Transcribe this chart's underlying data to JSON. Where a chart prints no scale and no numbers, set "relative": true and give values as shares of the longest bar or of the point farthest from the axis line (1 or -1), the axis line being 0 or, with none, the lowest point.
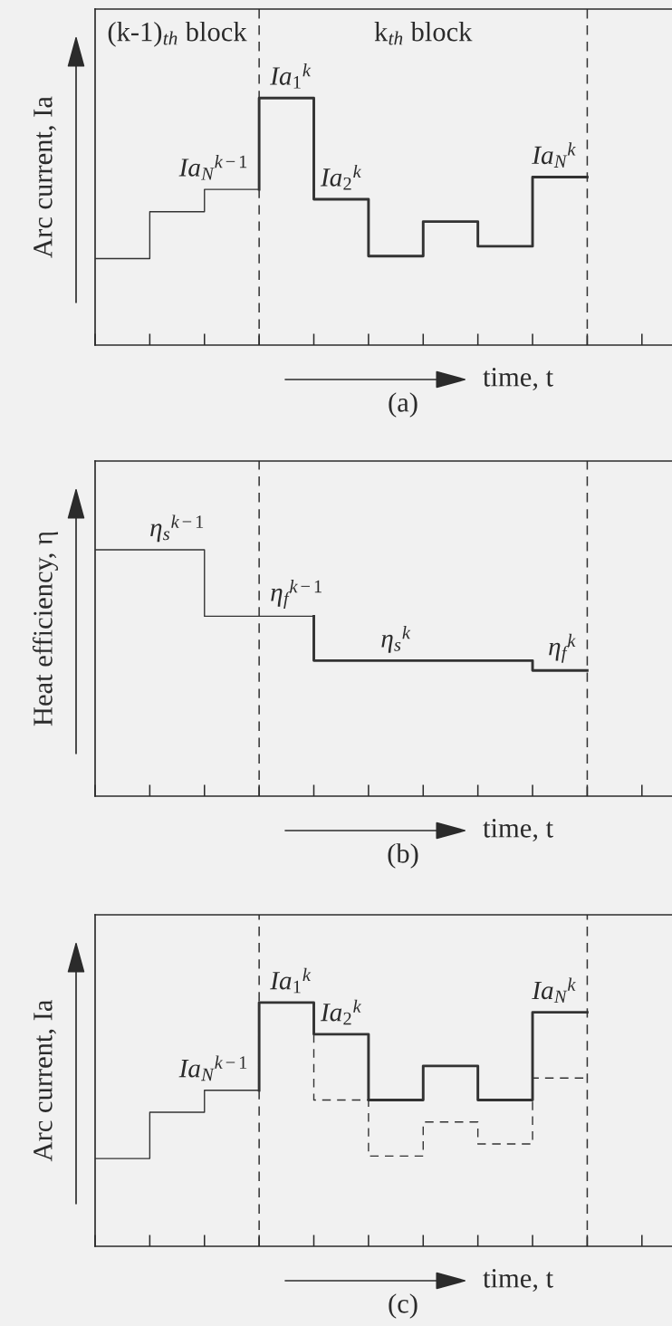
{
  "chart_data": [
    {
      "type": "step",
      "title": "(a)",
      "xlabel": "time, t",
      "ylabel": "Arc current, Ia",
      "relative": true,
      "categories": [
        null,
        null,
        null,
        null,
        null,
        null,
        null,
        null,
        null,
        null,
        null
      ],
      "series": [
        {
          "color": "#333333",
          "line_style": "solid",
          "values": [
            0.35,
            0.35,
            0.54,
            0.63,
            null,
            null,
            null,
            null,
            null,
            null,
            null
          ]
        },
        {
          "color": "#333333",
          "line_style": "solid",
          "values": [
            null,
            null,
            null,
            0.63,
            1,
            0.59,
            0.36,
            0.5,
            0.4,
            0.68,
            null
          ]
        }
      ],
      "annotations": [
        "(k-1)$_{th}$ block",
        "k$_{th}$ block",
        {
          "text": "Ia$_{N}$$^{k−1}$",
          "y": 0.63
        },
        {
          "text": "Ia$_{1}$$^{k}$",
          "y": 1
        },
        {
          "text": "Ia$_{2}$$^{k}$",
          "y": 0.59
        },
        {
          "text": "Ia$_{N}$$^{k}$",
          "y": 0.68
        }
      ]
    },
    {
      "type": "step",
      "title": "(b)",
      "xlabel": "time, t",
      "ylabel": "Heat efficiency, η",
      "relative": true,
      "categories": [
        null,
        null,
        null,
        null,
        null,
        null,
        null,
        null,
        null,
        null,
        null
      ],
      "series": [
        {
          "color": "#333333",
          "line_style": "solid",
          "values": [
            1,
            1,
            1,
            0.73,
            0.73,
            null,
            null,
            null,
            null,
            null,
            null
          ]
        },
        {
          "color": "#333333",
          "line_style": "solid",
          "values": [
            null,
            null,
            null,
            null,
            0.73,
            0.55,
            0.55,
            0.55,
            0.55,
            0.51,
            null
          ]
        }
      ],
      "annotations": [
        {
          "text": "η$_{s}$$^{k−1}$",
          "y": 1
        },
        {
          "text": "η$_{f}$$^{k−1}$",
          "y": 0.73
        },
        {
          "text": "η$_{s}$$^{k}$",
          "y": 0.55
        },
        {
          "text": "η$_{f}$$^{k}$",
          "y": 0.51
        }
      ]
    },
    {
      "type": "step",
      "title": "(c)",
      "xlabel": "time, t",
      "ylabel": "Arc current, Ia",
      "relative": true,
      "categories": [
        null,
        null,
        null,
        null,
        null,
        null,
        null,
        null,
        null,
        null,
        null
      ],
      "series": [
        {
          "color": "#333333",
          "line_style": "solid",
          "values": [
            0.36,
            0.36,
            0.55,
            0.64,
            null,
            null,
            null,
            null,
            null,
            null,
            null
          ]
        },
        {
          "color": "#333333",
          "line_style": "solid",
          "values": [
            null,
            null,
            null,
            0.64,
            1,
            0.87,
            0.6,
            0.74,
            0.6,
            0.96,
            null
          ]
        },
        {
          "color": "#333333",
          "line_style": "dashed",
          "values": [
            null,
            null,
            null,
            null,
            0.87,
            0.6,
            0.37,
            0.51,
            0.42,
            0.69,
            null
          ]
        }
      ],
      "annotations": [
        {
          "text": "Ia$_{N}$$^{k−1}$",
          "y": 0.64
        },
        {
          "text": "Ia$_{1}$$^{k}$",
          "y": 1
        },
        {
          "text": "Ia$_{2}$$^{k}$",
          "y": 0.87
        },
        {
          "text": "Ia$_{N}$$^{k}$",
          "y": 0.96
        }
      ]
    }
  ]
}
